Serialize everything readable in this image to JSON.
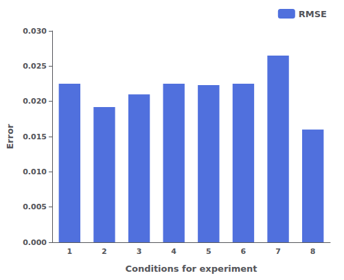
{
  "chart_data": {
    "type": "bar",
    "xlabel": "Conditions for experiment",
    "ylabel": "Error",
    "categories": [
      "1",
      "2",
      "3",
      "4",
      "5",
      "6",
      "7",
      "8"
    ],
    "series": [
      {
        "name": "RMSE",
        "values": [
          0.0225,
          0.0192,
          0.021,
          0.0225,
          0.0223,
          0.0225,
          0.0265,
          0.016
        ]
      }
    ],
    "ylim": [
      0.0,
      0.03
    ],
    "yticks": [
      {
        "value": 0.0,
        "label": "0.000"
      },
      0.005,
      {
        "value": 0.01,
        "label": "0.010"
      },
      0.015,
      {
        "value": 0.02,
        "label": "0.020"
      },
      0.025,
      {
        "value": 0.03,
        "label": "0.030"
      }
    ],
    "legend": "upper right",
    "grid": false
  }
}
